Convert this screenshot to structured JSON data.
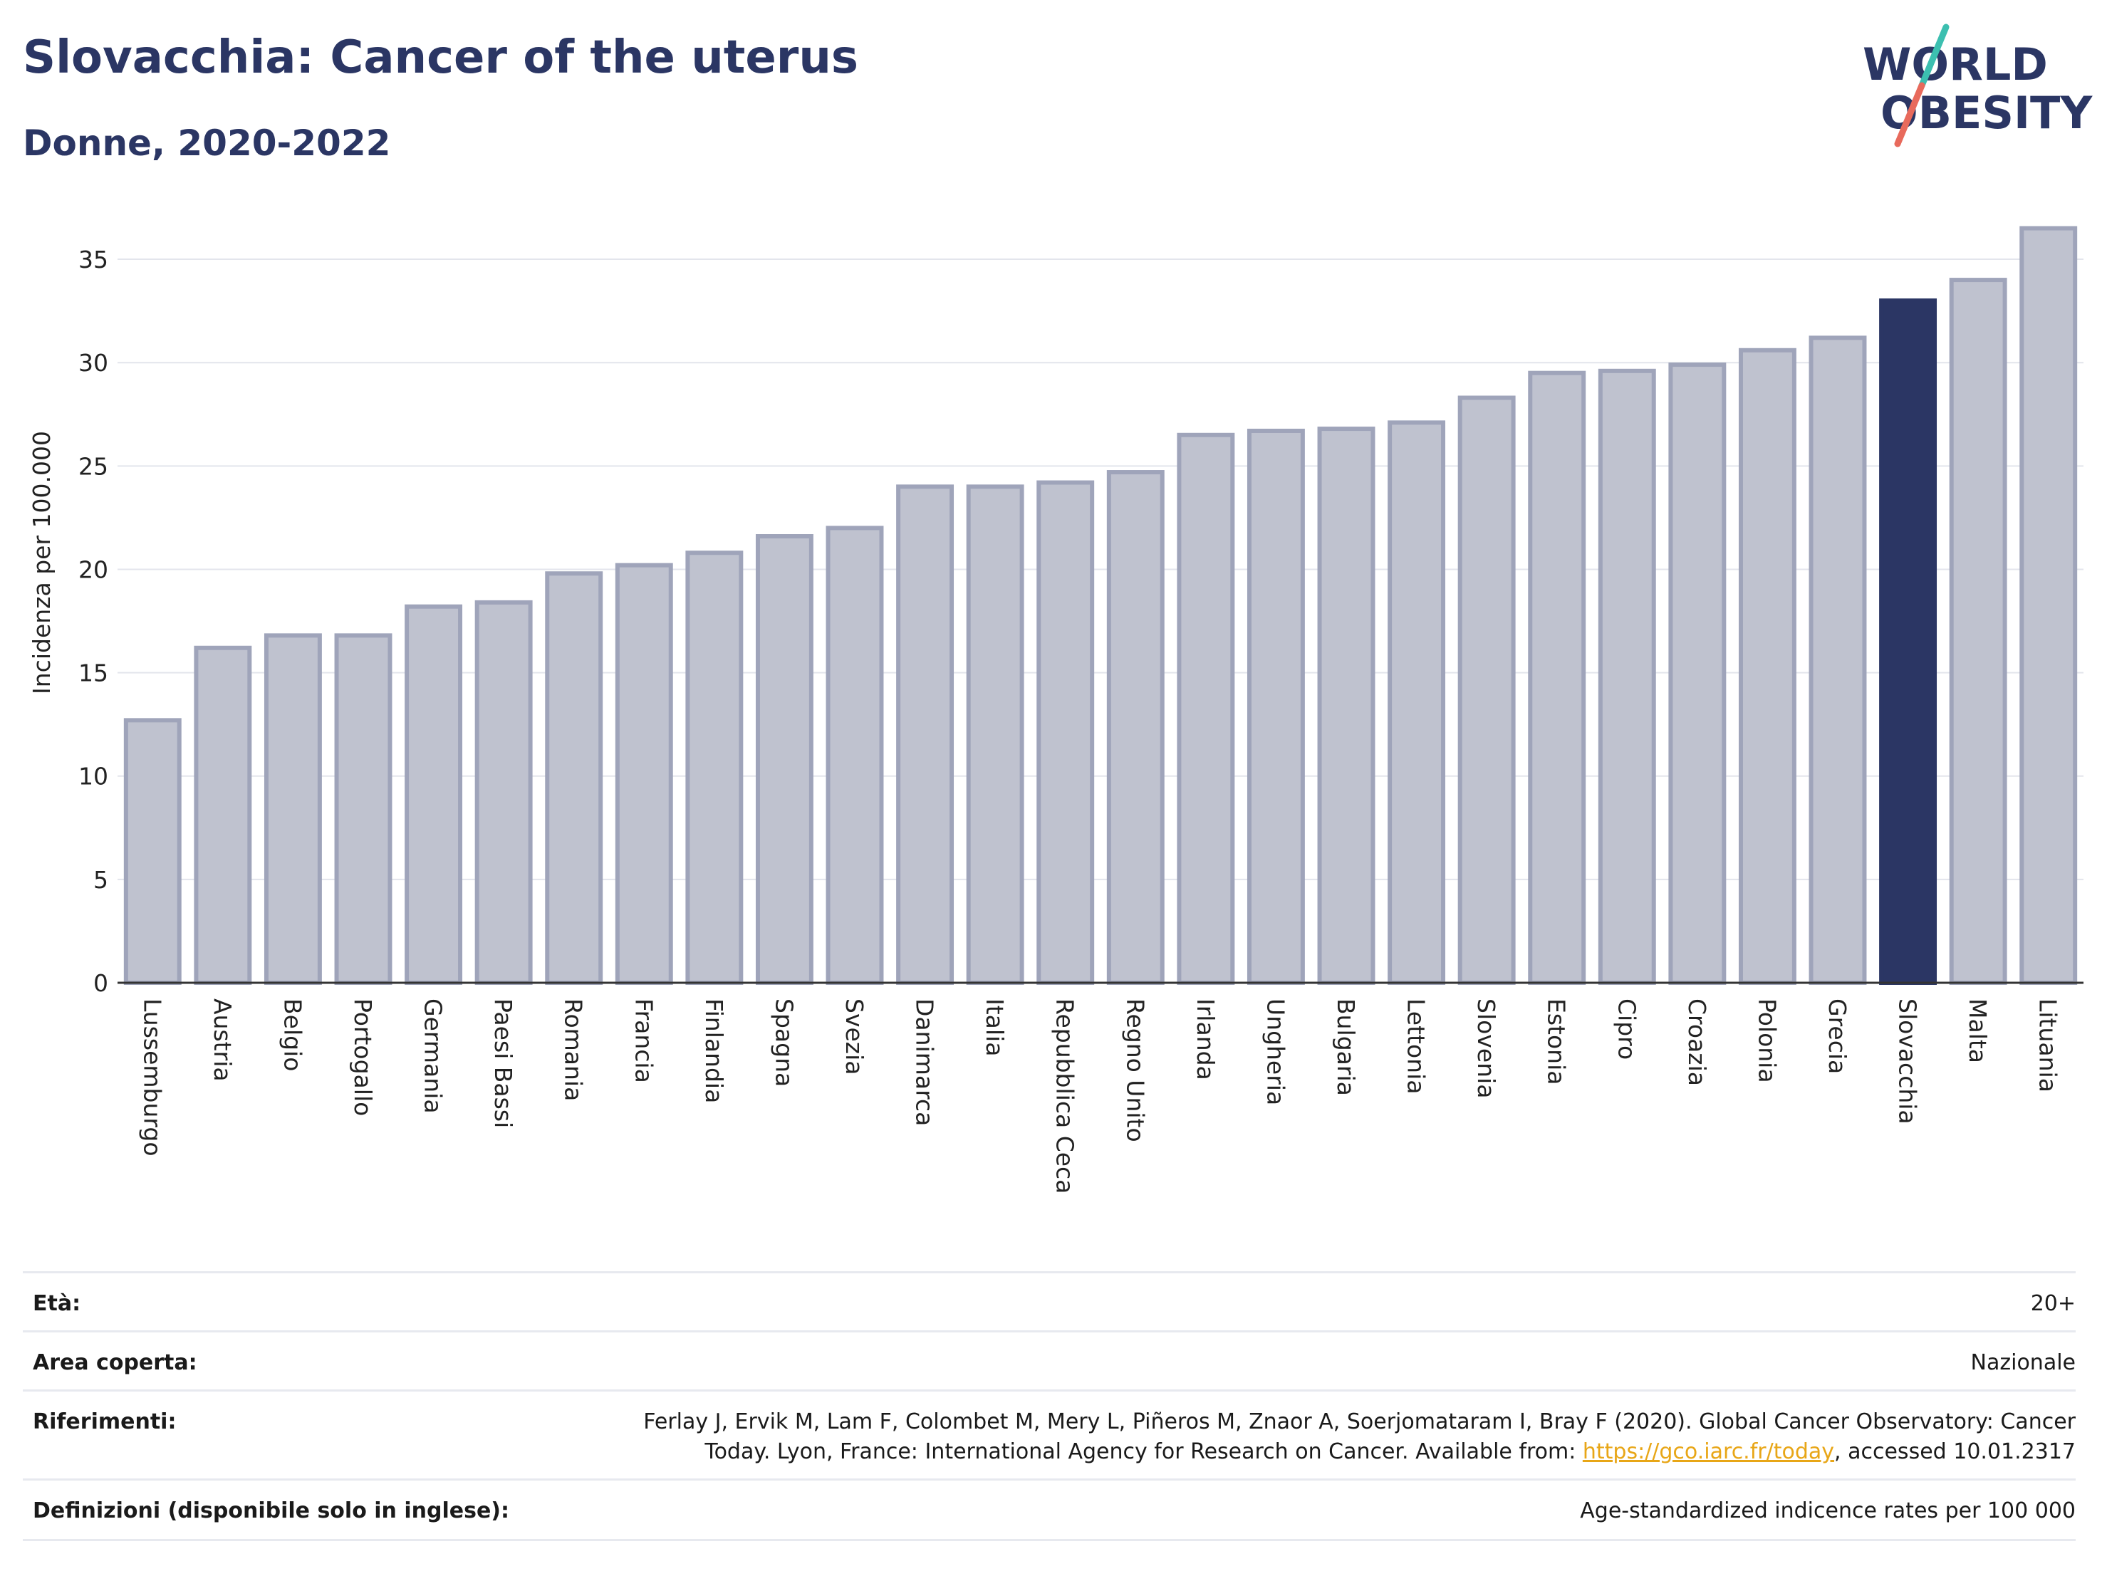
{
  "header": {
    "title": "Slovacchia: Cancer of the uterus",
    "subtitle": "Donne, 2020-2022"
  },
  "logo": {
    "line1": "WORLD",
    "line2": "OBESITY",
    "slash_colors": [
      "#3cbfb0",
      "#e86a5c"
    ]
  },
  "colors": {
    "highlight": "#2b3664",
    "bar": "#bfc2cf",
    "bar_stroke": "#9fa4ba",
    "grid": "#e3e5ec"
  },
  "chart_data": {
    "type": "bar",
    "ylabel": "Incidenza per 100.000",
    "ylim": [
      0,
      37
    ],
    "yticks": [
      0,
      5,
      10,
      15,
      20,
      25,
      30,
      35
    ],
    "highlight": "Slovacchia",
    "categories": [
      "Lussemburgo",
      "Austria",
      "Belgio",
      "Portogallo",
      "Germania",
      "Paesi Bassi",
      "Romania",
      "Francia",
      "Finlandia",
      "Spagna",
      "Svezia",
      "Danimarca",
      "Italia",
      "Repubblica Ceca",
      "Regno Unito",
      "Irlanda",
      "Ungheria",
      "Bulgaria",
      "Lettonia",
      "Slovenia",
      "Estonia",
      "Cipro",
      "Croazia",
      "Polonia",
      "Grecia",
      "Slovacchia",
      "Malta",
      "Lituania"
    ],
    "values": [
      12.7,
      16.2,
      16.8,
      16.8,
      18.2,
      18.4,
      19.8,
      20.2,
      20.8,
      21.6,
      22.0,
      24.0,
      24.0,
      24.2,
      24.7,
      26.5,
      26.7,
      26.8,
      27.1,
      28.3,
      29.5,
      29.6,
      29.9,
      30.6,
      31.2,
      33.0,
      34.0,
      36.5
    ]
  },
  "footer": {
    "age_label": "Età:",
    "age_value": "20+",
    "area_label": "Area coperta:",
    "area_value": "Nazionale",
    "refs_label": "Riferimenti:",
    "refs_text1": "Ferlay J, Ervik M, Lam F, Colombet M, Mery L, Piñeros M, Znaor A, Soerjomataram I, Bray F (2020). Global Cancer Observatory: Cancer Today. Lyon, France: International Agency for Research on Cancer. Available from: ",
    "refs_link": "https://gco.iarc.fr/today",
    "refs_text2": ", accessed 10.01.2317",
    "defs_label": "Definizioni (disponibile solo in inglese):",
    "defs_value": "Age-standardized indicence rates per 100 000"
  }
}
